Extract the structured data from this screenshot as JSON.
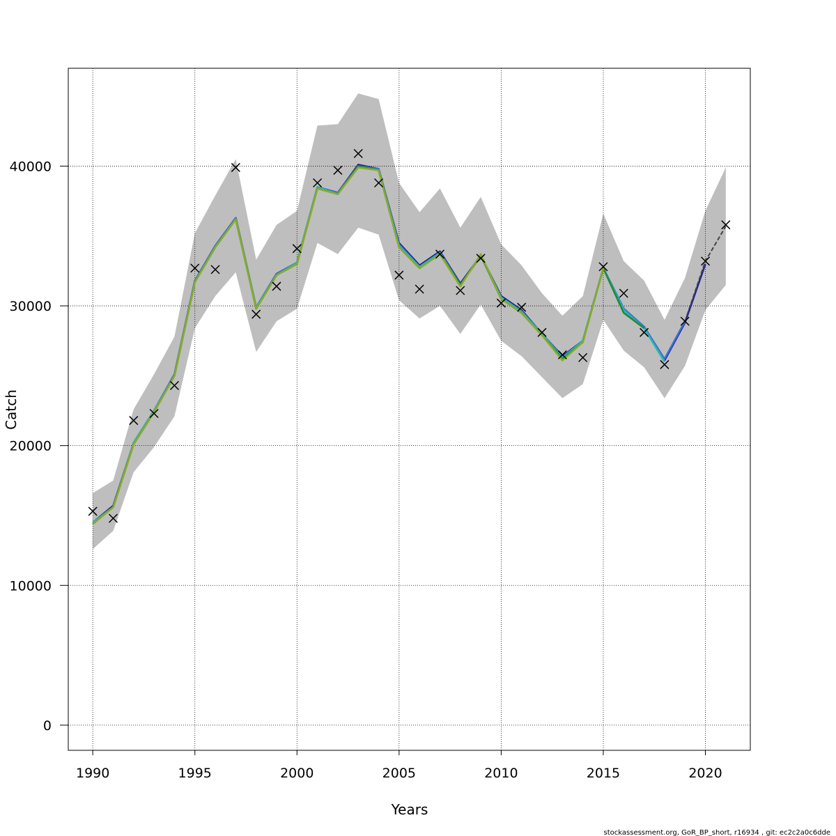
{
  "chart_data": {
    "type": "line",
    "title": "",
    "xlabel": "Years",
    "ylabel": "Catch",
    "xlim": [
      1988.8,
      2022.2
    ],
    "ylim": [
      -1800,
      47000
    ],
    "x_ticks": [
      1990,
      1995,
      2000,
      2005,
      2010,
      2015,
      2020
    ],
    "y_ticks": [
      0,
      10000,
      20000,
      30000,
      40000
    ],
    "grid": true,
    "band": {
      "years": [
        1990,
        1991,
        1992,
        1993,
        1994,
        1995,
        1996,
        1997,
        1998,
        1999,
        2000,
        2001,
        2002,
        2003,
        2004,
        2005,
        2006,
        2007,
        2008,
        2009,
        2010,
        2011,
        2012,
        2013,
        2014,
        2015,
        2016,
        2017,
        2018,
        2019,
        2020,
        2021
      ],
      "upper": [
        16600,
        17500,
        22600,
        25100,
        27800,
        35200,
        37900,
        40500,
        33300,
        35800,
        36800,
        42900,
        43000,
        45200,
        44800,
        38800,
        36700,
        38400,
        35600,
        37800,
        34400,
        32900,
        30900,
        29300,
        30700,
        36600,
        33200,
        31800,
        29000,
        32000,
        36800,
        39900
      ],
      "lower": [
        12600,
        13900,
        18100,
        19900,
        22100,
        28400,
        30700,
        32400,
        26700,
        28900,
        29800,
        34500,
        33700,
        35600,
        35100,
        30400,
        29100,
        30000,
        28000,
        30100,
        27500,
        26400,
        24900,
        23400,
        24400,
        29000,
        26800,
        25600,
        23400,
        25700,
        29700,
        31500
      ]
    },
    "series": [
      {
        "color": "#1f1f9a",
        "x": [
          1990,
          1991,
          1992,
          1993,
          1994,
          1995,
          1996,
          1997,
          1998,
          1999,
          2000,
          2001,
          2002,
          2003,
          2004,
          2005,
          2006,
          2007,
          2008,
          2009,
          2010,
          2011,
          2012,
          2013,
          2014,
          2015,
          2016,
          2017,
          2018,
          2019,
          2020
        ],
        "y": [
          14500,
          15700,
          20200,
          22500,
          25100,
          31800,
          34300,
          36300,
          29900,
          32300,
          33100,
          38500,
          38100,
          40100,
          39800,
          34500,
          32900,
          33900,
          31600,
          33600,
          30700,
          29700,
          28000,
          26400,
          27500,
          32700,
          29800,
          28500,
          26100,
          28800,
          33000
        ]
      },
      {
        "color": "#3a6fd0",
        "x": [
          1990,
          1991,
          1992,
          1993,
          1994,
          1995,
          1996,
          1997,
          1998,
          1999,
          2000,
          2001,
          2002,
          2003,
          2004,
          2005,
          2006,
          2007,
          2008,
          2009,
          2010,
          2011,
          2012,
          2013,
          2014,
          2015,
          2016,
          2017,
          2018,
          2019
        ],
        "y": [
          14500,
          15600,
          20200,
          22500,
          25100,
          31800,
          34300,
          36300,
          29900,
          32300,
          33100,
          38500,
          38100,
          40000,
          39800,
          34400,
          32800,
          33800,
          31500,
          33600,
          30600,
          29600,
          28000,
          26300,
          27500,
          32700,
          29800,
          28500,
          26200,
          28900
        ]
      },
      {
        "color": "#2bb5b5",
        "x": [
          1990,
          1991,
          1992,
          1993,
          1994,
          1995,
          1996,
          1997,
          1998,
          1999,
          2000,
          2001,
          2002,
          2003,
          2004,
          2005,
          2006,
          2007,
          2008,
          2009,
          2010,
          2011,
          2012,
          2013,
          2014,
          2015,
          2016,
          2017,
          2018
        ],
        "y": [
          14500,
          15600,
          20200,
          22500,
          25000,
          31700,
          34200,
          36200,
          29900,
          32200,
          33100,
          38500,
          38000,
          40000,
          39700,
          34300,
          32800,
          33800,
          31500,
          33600,
          30600,
          29600,
          28000,
          26300,
          27500,
          32700,
          29700,
          28400,
          26000
        ]
      },
      {
        "color": "#1f8a3a",
        "x": [
          1990,
          1991,
          1992,
          1993,
          1994,
          1995,
          1996,
          1997,
          1998,
          1999,
          2000,
          2001,
          2002,
          2003,
          2004,
          2005,
          2006,
          2007,
          2008,
          2009,
          2010,
          2011,
          2012,
          2013,
          2014,
          2015,
          2016,
          2017
        ],
        "y": [
          14400,
          15600,
          20100,
          22400,
          25000,
          31700,
          34200,
          36200,
          29800,
          32200,
          33000,
          38400,
          38000,
          40000,
          39700,
          34200,
          32700,
          33700,
          31500,
          33600,
          30500,
          29500,
          27900,
          26200,
          27400,
          32700,
          29500,
          28400
        ]
      },
      {
        "color": "#8aaa2a",
        "x": [
          1990,
          1991,
          1992,
          1993,
          1994,
          1995,
          1996,
          1997,
          1998,
          1999,
          2000,
          2001,
          2002,
          2003,
          2004,
          2005,
          2006,
          2007,
          2008,
          2009,
          2010,
          2011,
          2012,
          2013,
          2014,
          2015
        ],
        "y": [
          14400,
          15600,
          20100,
          22400,
          25000,
          31700,
          34200,
          36200,
          29800,
          32200,
          33000,
          38400,
          38000,
          39900,
          39700,
          34200,
          32700,
          33700,
          31400,
          33700,
          30500,
          29500,
          27900,
          26100,
          27400,
          32700
        ]
      },
      {
        "color": "#444444",
        "dashed": true,
        "x": [
          2019,
          2020,
          2021
        ],
        "y": [
          28900,
          33200,
          35700
        ]
      }
    ],
    "observations": {
      "x": [
        1990,
        1991,
        1992,
        1993,
        1994,
        1995,
        1996,
        1997,
        1998,
        1999,
        2000,
        2001,
        2002,
        2003,
        2004,
        2005,
        2006,
        2007,
        2008,
        2009,
        2010,
        2011,
        2012,
        2013,
        2014,
        2015,
        2016,
        2017,
        2018,
        2019,
        2020,
        2021
      ],
      "y": [
        15300,
        14800,
        21800,
        22300,
        24300,
        32700,
        32600,
        39900,
        29400,
        31400,
        34100,
        38800,
        39700,
        40900,
        38800,
        32200,
        31200,
        33700,
        31100,
        33400,
        30200,
        29900,
        28100,
        26500,
        26300,
        32800,
        30900,
        28100,
        25800,
        28900,
        33200,
        35800
      ]
    }
  },
  "footer_text": "stockassessment.org, GoR_BP_short, r16934 , git: ec2c2a0c6dde"
}
